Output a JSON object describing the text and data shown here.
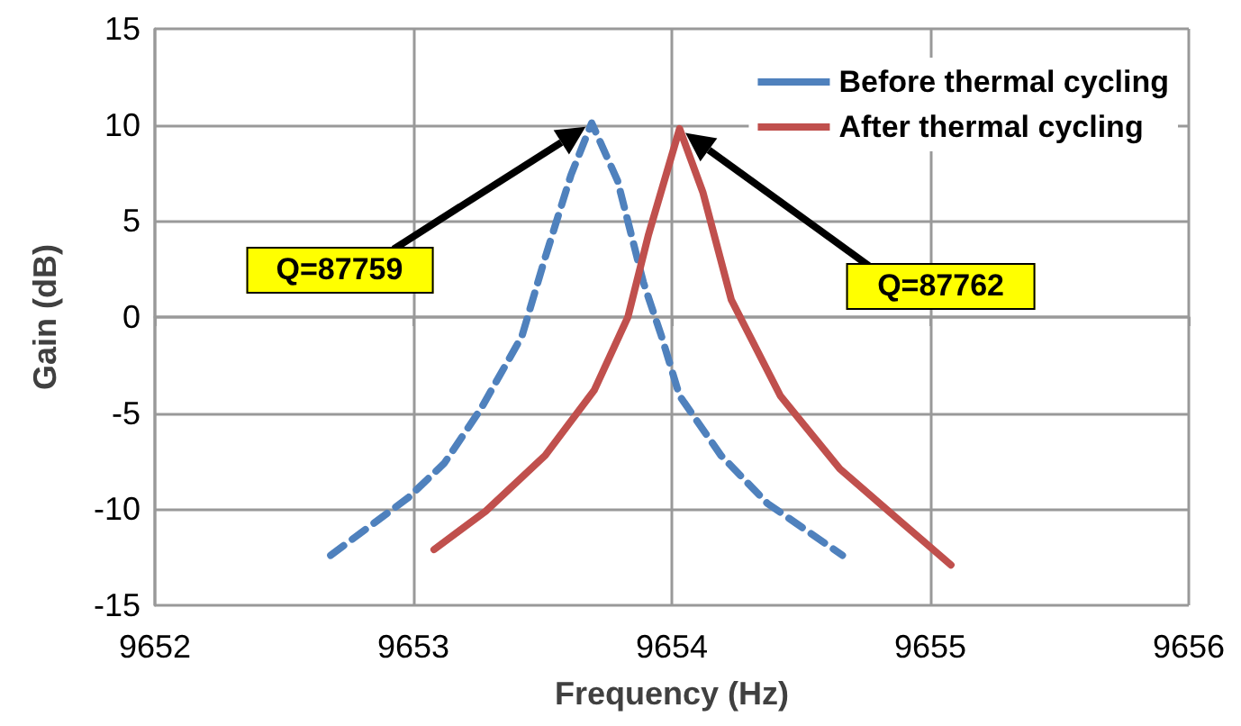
{
  "chart_data": {
    "type": "line",
    "xlabel": "Frequency (Hz)",
    "ylabel": "Gain (dB)",
    "xlim": [
      9652,
      9656
    ],
    "xticks": [
      9652,
      9653,
      9654,
      9655,
      9656
    ],
    "ylim": [
      -15,
      15
    ],
    "yticks": [
      -15,
      -10,
      -5,
      0,
      5,
      10,
      15
    ],
    "grid": true,
    "legend": "top right",
    "marker": "none",
    "series": [
      {
        "name": "Before thermal cycling",
        "color": "#4f81bd",
        "line_style": "dashed",
        "x": [
          9652.68,
          9652.98,
          9653.12,
          9653.26,
          9653.42,
          9653.51,
          9653.61,
          9653.69,
          9653.79,
          9653.89,
          9653.96,
          9654.03,
          9654.19,
          9654.37,
          9654.66
        ],
        "values": [
          -12.4,
          -9.4,
          -7.6,
          -4.8,
          -1.0,
          3.1,
          7.4,
          10.1,
          7.1,
          1.8,
          -1.0,
          -4.1,
          -7.2,
          -9.7,
          -12.4
        ]
      },
      {
        "name": "After thermal cycling",
        "color": "#c0504d",
        "line_style": "solid",
        "x": [
          9653.08,
          9653.28,
          9653.51,
          9653.7,
          9653.83,
          9653.91,
          9654.03,
          9654.12,
          9654.23,
          9654.42,
          9654.65,
          9654.89,
          9655.08
        ],
        "values": [
          -12.1,
          -10.1,
          -7.2,
          -3.8,
          0.0,
          4.3,
          9.8,
          6.5,
          0.9,
          -4.1,
          -7.9,
          -10.7,
          -12.9
        ]
      }
    ],
    "annotations": [
      "Q=87759",
      "Q=87762"
    ]
  }
}
